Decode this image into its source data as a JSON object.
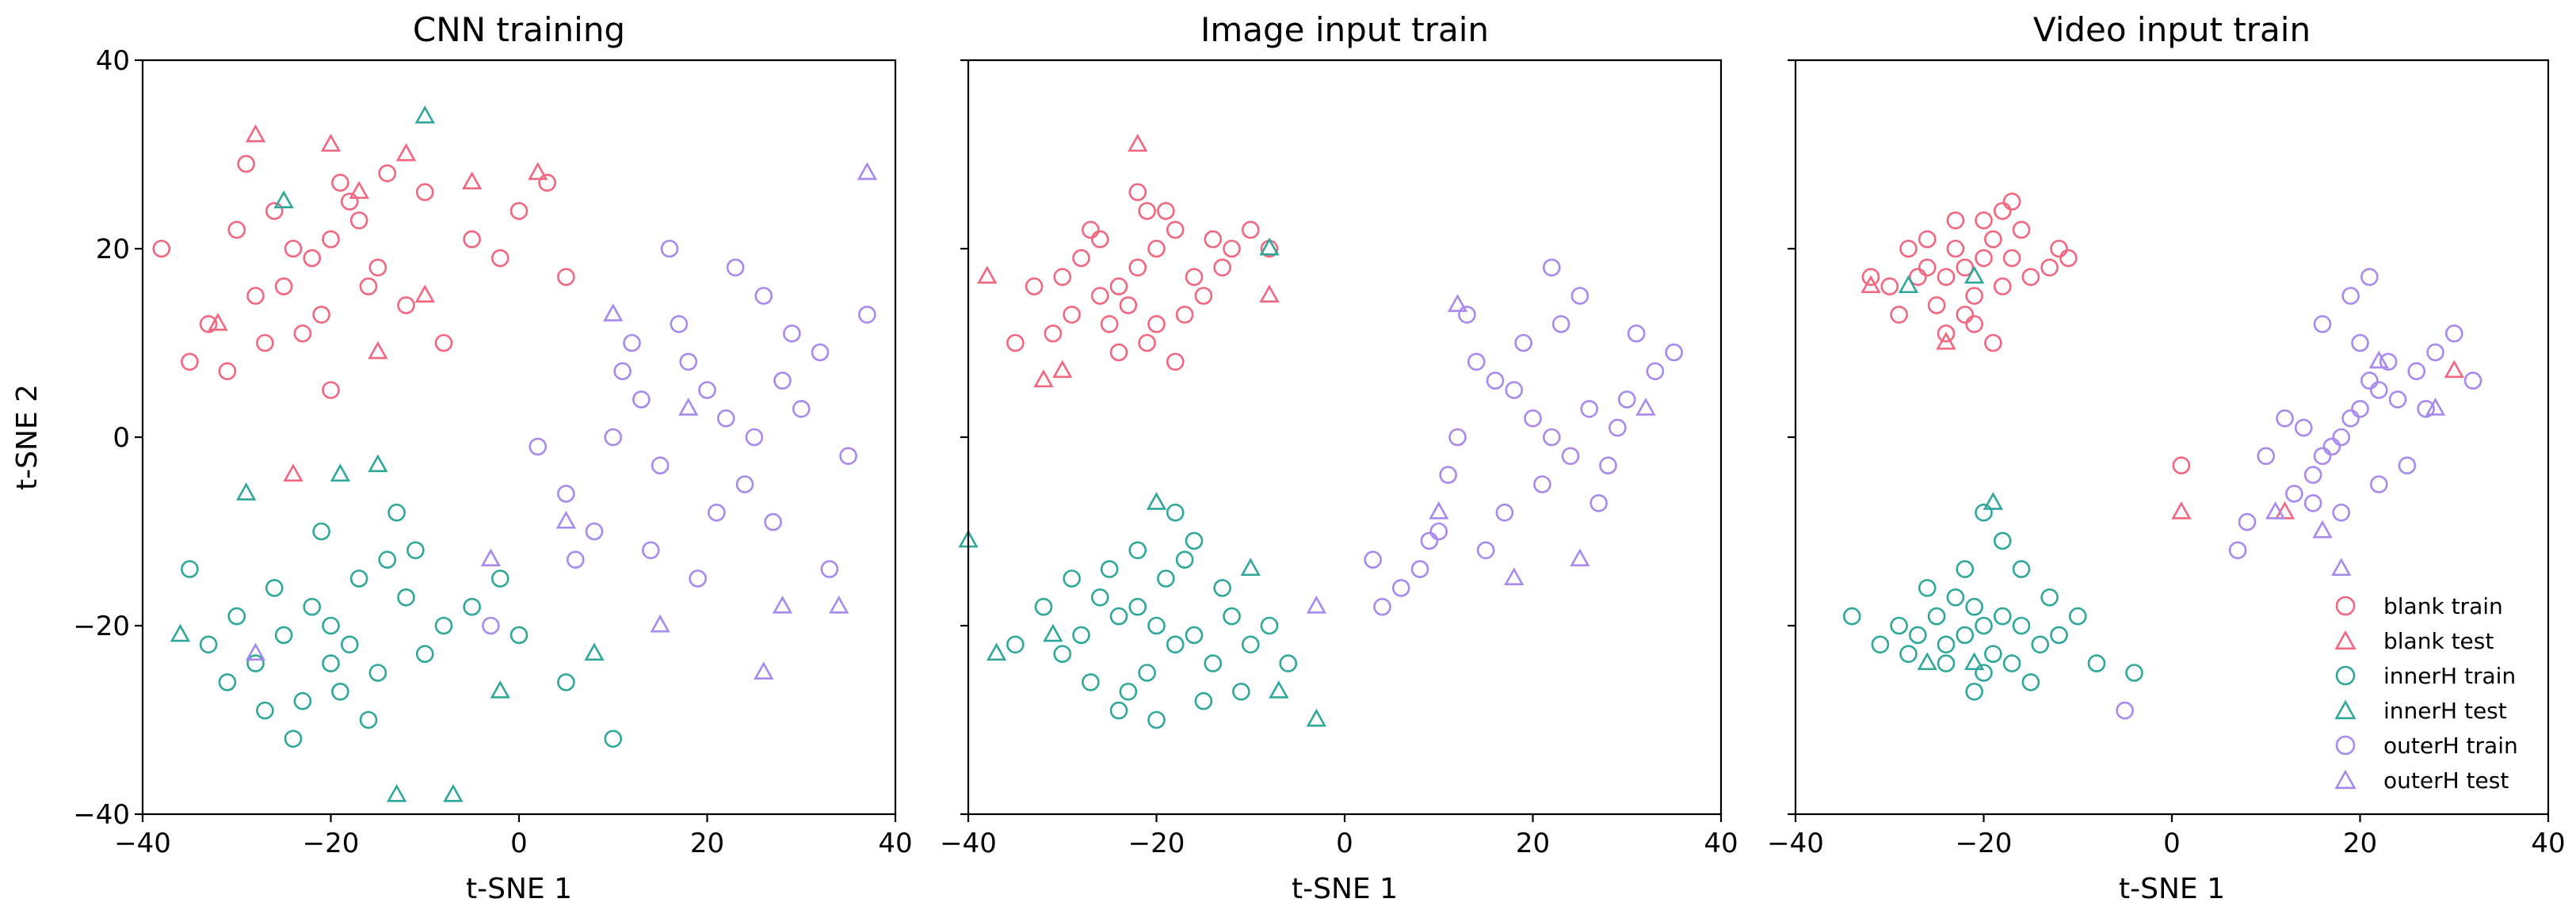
{
  "figure": {
    "panels": [
      {
        "title": "CNN training",
        "xlabel": "t-SNE 1",
        "ylabel": "t-SNE 2"
      },
      {
        "title": "Image input train",
        "xlabel": "t-SNE 1",
        "ylabel": ""
      },
      {
        "title": "Video input train",
        "xlabel": "t-SNE 1",
        "ylabel": ""
      }
    ],
    "xticks": [
      "−40",
      "−20",
      "0",
      "20",
      "40"
    ],
    "yticks": [
      "40",
      "20",
      "0",
      "−20",
      "−40"
    ]
  },
  "legend": {
    "placement": "lower-right of Video input train panel",
    "entries": [
      {
        "label": "blank train",
        "marker": "circle",
        "color": "#f2677f"
      },
      {
        "label": "blank test",
        "marker": "triangle",
        "color": "#f2677f"
      },
      {
        "label": "innerH train",
        "marker": "circle",
        "color": "#2fa89a"
      },
      {
        "label": "innerH test",
        "marker": "triangle",
        "color": "#2fa89a"
      },
      {
        "label": "outerH train",
        "marker": "circle",
        "color": "#a889ef"
      },
      {
        "label": "outerH test",
        "marker": "triangle",
        "color": "#a889ef"
      }
    ]
  },
  "chart_data": [
    {
      "type": "scatter",
      "title": "CNN training",
      "xlabel": "t-SNE 1",
      "ylabel": "t-SNE 2",
      "xlim": [
        -40,
        40
      ],
      "ylim": [
        -40,
        40
      ],
      "grid": false,
      "series": [
        {
          "name": "blank train",
          "marker": "circle",
          "color": "#f2677f",
          "x": [
            -22,
            -25,
            -20,
            -18,
            -28,
            -30,
            -15,
            -12,
            -24,
            -19,
            -33,
            -27,
            -21,
            -17,
            -10,
            -5,
            -2,
            0,
            3,
            5,
            -35,
            -38,
            -26,
            -14,
            -23,
            -16,
            -29,
            -31,
            -8,
            -20
          ],
          "y": [
            19,
            16,
            21,
            25,
            15,
            22,
            18,
            14,
            20,
            27,
            12,
            10,
            13,
            23,
            26,
            21,
            19,
            24,
            27,
            17,
            8,
            20,
            24,
            28,
            11,
            16,
            29,
            7,
            10,
            5
          ]
        },
        {
          "name": "blank test",
          "marker": "triangle",
          "color": "#f2677f",
          "x": [
            -28,
            -20,
            -17,
            -12,
            -5,
            2,
            -24,
            -10,
            -32,
            -15
          ],
          "y": [
            32,
            31,
            26,
            30,
            27,
            28,
            -4,
            15,
            12,
            9
          ]
        },
        {
          "name": "innerH train",
          "marker": "circle",
          "color": "#2fa89a",
          "x": [
            -20,
            -18,
            -22,
            -15,
            -25,
            -12,
            -28,
            -17,
            -23,
            -30,
            -10,
            -14,
            -19,
            -26,
            -8,
            -33,
            -21,
            -16,
            -5,
            0,
            5,
            -35,
            -24,
            -13,
            -27,
            -20,
            -11,
            -31,
            -2,
            10
          ],
          "y": [
            -20,
            -22,
            -18,
            -25,
            -21,
            -17,
            -24,
            -15,
            -28,
            -19,
            -23,
            -13,
            -27,
            -16,
            -20,
            -22,
            -10,
            -30,
            -18,
            -21,
            -26,
            -14,
            -32,
            -8,
            -29,
            -24,
            -12,
            -26,
            -15,
            -32
          ]
        },
        {
          "name": "innerH test",
          "marker": "triangle",
          "color": "#2fa89a",
          "x": [
            -10,
            -25,
            -19,
            -13,
            -7,
            -36,
            -29,
            -15,
            -2,
            8
          ],
          "y": [
            34,
            25,
            -4,
            -38,
            -38,
            -21,
            -6,
            -3,
            -27,
            -23
          ]
        },
        {
          "name": "outerH train",
          "marker": "circle",
          "color": "#a889ef",
          "x": [
            20,
            22,
            18,
            25,
            15,
            28,
            12,
            24,
            30,
            17,
            21,
            26,
            14,
            32,
            10,
            19,
            23,
            35,
            8,
            27,
            16,
            5,
            2,
            29,
            33,
            13,
            -3,
            37,
            11,
            6
          ],
          "y": [
            5,
            2,
            8,
            0,
            -3,
            6,
            10,
            -5,
            3,
            12,
            -8,
            15,
            -12,
            9,
            0,
            -15,
            18,
            -2,
            -10,
            -9,
            20,
            -6,
            -1,
            11,
            -14,
            4,
            -20,
            13,
            7,
            -13
          ]
        },
        {
          "name": "outerH test",
          "marker": "triangle",
          "color": "#a889ef",
          "x": [
            37,
            28,
            -28,
            -3,
            26,
            34,
            10,
            15,
            18,
            5
          ],
          "y": [
            28,
            -18,
            -23,
            -13,
            -25,
            -18,
            13,
            -20,
            3,
            -9
          ]
        }
      ]
    },
    {
      "type": "scatter",
      "title": "Image input train",
      "xlabel": "t-SNE 1",
      "ylabel": "",
      "xlim": [
        -40,
        40
      ],
      "ylim": [
        -40,
        40
      ],
      "grid": false,
      "series": [
        {
          "name": "blank train",
          "marker": "circle",
          "color": "#f2677f",
          "x": [
            -22,
            -24,
            -20,
            -18,
            -26,
            -28,
            -16,
            -14,
            -23,
            -19,
            -30,
            -25,
            -21,
            -17,
            -12,
            -10,
            -33,
            -27,
            -15,
            -22,
            -35,
            -20,
            -24,
            -13,
            -29,
            -8,
            -18,
            -31,
            -26,
            -21
          ],
          "y": [
            18,
            16,
            20,
            22,
            15,
            19,
            17,
            21,
            14,
            24,
            17,
            12,
            10,
            13,
            20,
            22,
            16,
            22,
            15,
            26,
            10,
            12,
            9,
            18,
            13,
            20,
            8,
            11,
            21,
            24
          ]
        },
        {
          "name": "blank test",
          "marker": "triangle",
          "color": "#f2677f",
          "x": [
            -22,
            -38,
            -32,
            -8,
            -30
          ],
          "y": [
            31,
            17,
            6,
            15,
            7
          ]
        },
        {
          "name": "innerH train",
          "marker": "circle",
          "color": "#2fa89a",
          "x": [
            -20,
            -22,
            -18,
            -24,
            -16,
            -26,
            -14,
            -21,
            -19,
            -28,
            -12,
            -23,
            -17,
            -30,
            -10,
            -25,
            -15,
            -20,
            -32,
            -8,
            -27,
            -13,
            -22,
            -18,
            -35,
            -6,
            -24,
            -11,
            -29,
            -16
          ],
          "y": [
            -20,
            -18,
            -22,
            -19,
            -21,
            -17,
            -24,
            -25,
            -15,
            -21,
            -19,
            -27,
            -13,
            -23,
            -22,
            -14,
            -28,
            -30,
            -18,
            -20,
            -26,
            -16,
            -12,
            -8,
            -22,
            -24,
            -29,
            -27,
            -15,
            -11
          ]
        },
        {
          "name": "innerH test",
          "marker": "triangle",
          "color": "#2fa89a",
          "x": [
            -40,
            -37,
            -8,
            -3,
            -20,
            -10,
            -31,
            -7
          ],
          "y": [
            -11,
            -23,
            20,
            -30,
            -7,
            -14,
            -21,
            -27
          ]
        },
        {
          "name": "outerH train",
          "marker": "circle",
          "color": "#a889ef",
          "x": [
            20,
            22,
            18,
            24,
            16,
            26,
            14,
            21,
            19,
            28,
            12,
            23,
            17,
            30,
            10,
            25,
            15,
            33,
            8,
            27,
            13,
            22,
            6,
            35,
            11,
            31,
            4,
            29,
            9,
            3
          ],
          "y": [
            2,
            0,
            5,
            -2,
            6,
            3,
            8,
            -5,
            10,
            -3,
            0,
            12,
            -8,
            4,
            -10,
            15,
            -12,
            7,
            -14,
            -7,
            13,
            18,
            -16,
            9,
            -4,
            11,
            -18,
            1,
            -11,
            -13
          ]
        },
        {
          "name": "outerH test",
          "marker": "triangle",
          "color": "#a889ef",
          "x": [
            18,
            -3,
            10,
            25,
            32,
            12
          ],
          "y": [
            -15,
            -18,
            -8,
            -13,
            3,
            14
          ]
        }
      ]
    },
    {
      "type": "scatter",
      "title": "Video input train",
      "xlabel": "t-SNE 1",
      "ylabel": "",
      "xlim": [
        -40,
        40
      ],
      "ylim": [
        -40,
        40
      ],
      "grid": false,
      "legend": "bottom-right",
      "series": [
        {
          "name": "blank train",
          "marker": "circle",
          "color": "#f2677f",
          "x": [
            -22,
            -24,
            -20,
            -18,
            -26,
            -23,
            -21,
            -19,
            -25,
            -17,
            -27,
            -16,
            -22,
            -28,
            -20,
            -15,
            -24,
            -30,
            -13,
            -18,
            -32,
            -12,
            -26,
            -21,
            -23,
            -29,
            -17,
            -19,
            -11,
            1
          ],
          "y": [
            18,
            17,
            19,
            16,
            18,
            20,
            15,
            21,
            14,
            19,
            17,
            22,
            13,
            20,
            23,
            17,
            11,
            16,
            18,
            24,
            17,
            20,
            21,
            12,
            23,
            13,
            25,
            10,
            19,
            -3
          ]
        },
        {
          "name": "blank test",
          "marker": "triangle",
          "color": "#f2677f",
          "x": [
            -24,
            -32,
            30,
            12,
            1
          ],
          "y": [
            10,
            16,
            7,
            -8,
            -8
          ]
        },
        {
          "name": "innerH train",
          "marker": "circle",
          "color": "#2fa89a",
          "x": [
            -20,
            -22,
            -18,
            -24,
            -16,
            -21,
            -19,
            -25,
            -17,
            -23,
            -27,
            -14,
            -20,
            -29,
            -12,
            -26,
            -15,
            -22,
            -31,
            -10,
            -18,
            -24,
            -13,
            -28,
            -20,
            -8,
            -34,
            -21,
            -16,
            -4
          ],
          "y": [
            -20,
            -21,
            -19,
            -22,
            -20,
            -18,
            -23,
            -19,
            -24,
            -17,
            -21,
            -22,
            -25,
            -20,
            -21,
            -16,
            -26,
            -14,
            -22,
            -19,
            -11,
            -24,
            -17,
            -23,
            -8,
            -24,
            -19,
            -27,
            -14,
            -25
          ]
        },
        {
          "name": "innerH test",
          "marker": "triangle",
          "color": "#2fa89a",
          "x": [
            -21,
            -28,
            -26,
            -21,
            -19
          ],
          "y": [
            17,
            16,
            -24,
            -24,
            -7
          ]
        },
        {
          "name": "outerH train",
          "marker": "circle",
          "color": "#a889ef",
          "x": [
            18,
            20,
            16,
            22,
            15,
            19,
            21,
            17,
            23,
            14,
            24,
            13,
            20,
            25,
            18,
            12,
            26,
            16,
            22,
            28,
            10,
            19,
            27,
            15,
            30,
            8,
            21,
            32,
            7,
            -5
          ],
          "y": [
            0,
            3,
            -2,
            5,
            -4,
            2,
            6,
            -1,
            8,
            1,
            4,
            -6,
            10,
            -3,
            -8,
            2,
            7,
            12,
            -5,
            9,
            -2,
            15,
            3,
            -7,
            11,
            -9,
            17,
            6,
            -12,
            -29
          ]
        },
        {
          "name": "outerH test",
          "marker": "triangle",
          "color": "#a889ef",
          "x": [
            18,
            28,
            11,
            16,
            22
          ],
          "y": [
            -14,
            3,
            -8,
            -10,
            8
          ]
        }
      ]
    }
  ]
}
